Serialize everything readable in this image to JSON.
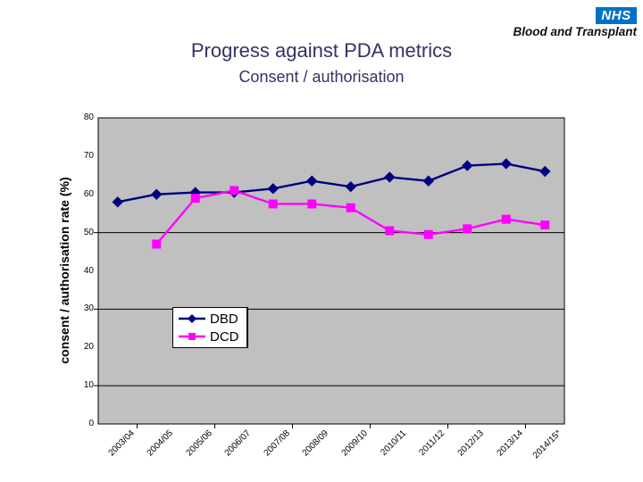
{
  "header": {
    "logo": {
      "nhs": "NHS",
      "org": "Blood and Transplant",
      "nhs_blue": "#0072c6"
    },
    "title": "Progress against PDA metrics",
    "subtitle": "Consent / authorisation",
    "title_color": "#333366"
  },
  "chart_data": {
    "type": "line",
    "title": "",
    "xlabel": "",
    "ylabel": "consent / authorisation rate (%)",
    "ylim": [
      0,
      80
    ],
    "yticks": [
      80,
      70,
      60,
      50,
      40,
      30,
      20,
      10,
      0
    ],
    "gridlines": [
      50,
      30,
      10
    ],
    "plot_bg": "#c0c0c0",
    "axis_color": "#000000",
    "legend_position": "inside-left",
    "categories": [
      "2003/04",
      "2004/05",
      "2005/06",
      "2006/07",
      "2007/08",
      "2008/09",
      "2009/10",
      "2010/11",
      "2011/12",
      "2012/13",
      "2013/14",
      "2014/15*"
    ],
    "series": [
      {
        "name": "DBD",
        "color": "#000080",
        "marker": "diamond",
        "values": [
          58,
          60,
          60.5,
          60.5,
          61.5,
          63.5,
          62,
          64.5,
          63.5,
          67.5,
          68,
          66
        ]
      },
      {
        "name": "DCD",
        "color": "#ff00ff",
        "marker": "square",
        "values": [
          null,
          47,
          59,
          61,
          57.5,
          57.5,
          56.5,
          50.5,
          49.5,
          51,
          53.5,
          52
        ]
      }
    ]
  }
}
